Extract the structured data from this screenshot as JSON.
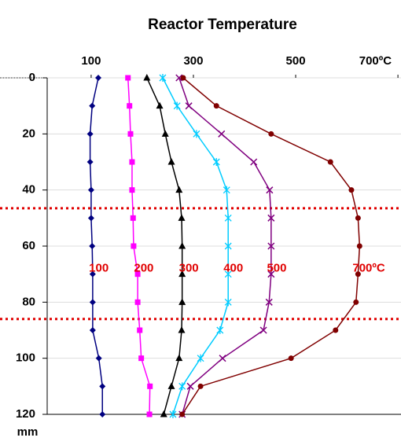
{
  "chart_data": {
    "type": "line",
    "title": "Reactor Temperature",
    "y_label": "mm",
    "x": [
      0,
      10,
      20,
      30,
      40,
      50,
      60,
      70,
      80,
      90,
      100,
      110,
      120
    ],
    "xlim": [
      14,
      706
    ],
    "xticks": [
      100,
      300,
      500,
      {
        "value": 700,
        "label": "700ºC"
      }
    ],
    "ylim": [
      0,
      120
    ],
    "yticks": [
      0,
      20,
      40,
      60,
      80,
      100,
      120
    ],
    "y_inverted": true,
    "grid": true,
    "series": [
      {
        "color": "#000080",
        "marker": "diamond",
        "values": [
          114,
          102,
          98,
          98,
          100,
          100,
          102,
          103,
          103,
          103,
          115,
          122,
          122
        ]
      },
      {
        "color": "#ff00ff",
        "marker": "square",
        "values": [
          172,
          175,
          177,
          180,
          180,
          182,
          183,
          191,
          191,
          195,
          198,
          215,
          214
        ]
      },
      {
        "color": "#000000",
        "marker": "triangle",
        "values": [
          209,
          234,
          245,
          257,
          272,
          277,
          278,
          278,
          278,
          277,
          272,
          257,
          242
        ]
      },
      {
        "color": "#00ccff",
        "marker": "star",
        "values": [
          240,
          268,
          306,
          345,
          365,
          368,
          368,
          368,
          368,
          352,
          314,
          278,
          260
        ]
      },
      {
        "color": "#800080",
        "marker": "cross",
        "values": [
          272,
          291,
          355,
          418,
          449,
          452,
          452,
          452,
          448,
          437,
          357,
          294,
          278
        ]
      },
      {
        "color": "#800000",
        "marker": "circle",
        "values": [
          280,
          345,
          452,
          568,
          609,
          622,
          625,
          622,
          618,
          578,
          491,
          314,
          278
        ]
      }
    ],
    "hlines": [
      46.5,
      86
    ],
    "annotations": [
      {
        "text": "100",
        "x": 115,
        "y": 68
      },
      {
        "text": "200",
        "x": 203,
        "y": 68
      },
      {
        "text": "300",
        "x": 291,
        "y": 68
      },
      {
        "text": "400",
        "x": 378,
        "y": 68
      },
      {
        "text": "500",
        "x": 463,
        "y": 68
      },
      {
        "text": "700ºC",
        "x": 643,
        "y": 68
      }
    ]
  }
}
